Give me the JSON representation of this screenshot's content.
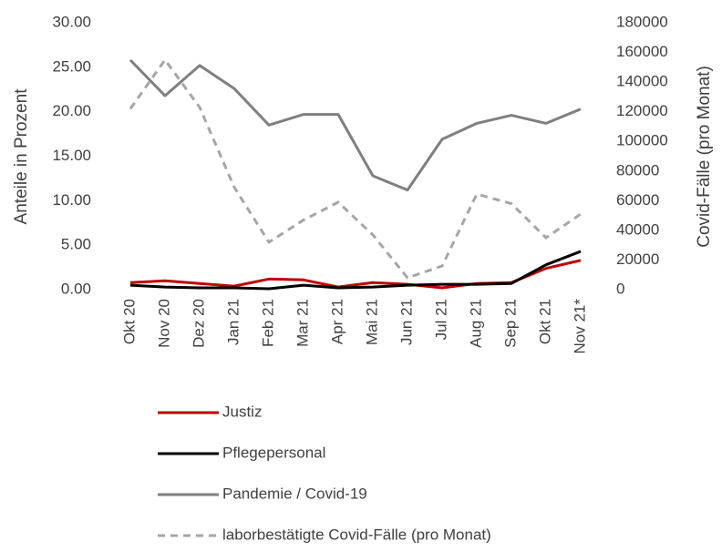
{
  "chart_data": {
    "type": "line",
    "y_label": "Anteile in Prozent",
    "y2_label": "Covid-Fälle (pro Monat)",
    "categories": [
      "Okt 20",
      "Nov 20",
      "Dez 20",
      "Jan 21",
      "Feb 21",
      "Mar 21",
      "Apr 21",
      "Mai 21",
      "Jun 21",
      "Jul 21",
      "Aug 21",
      "Sep 21",
      "Okt 21",
      "Nov 21*"
    ],
    "series": [
      {
        "name": "Justiz",
        "color": "#c00000",
        "values": [
          0.8,
          1.0,
          0.7,
          0.4,
          1.2,
          1.1,
          0.3,
          0.8,
          0.6,
          0.2,
          0.7,
          0.8,
          2.4,
          3.3
        ]
      },
      {
        "name": "Pflegepersonal",
        "color": "#000000",
        "values": [
          0.5,
          0.3,
          0.2,
          0.2,
          0.1,
          0.5,
          0.2,
          0.3,
          0.5,
          0.6,
          0.6,
          0.7,
          2.8,
          4.3
        ]
      },
      {
        "name": "Pandemie / Covid-19",
        "color": "#7f7f7f",
        "values": [
          25.8,
          21.8,
          25.2,
          22.6,
          18.5,
          19.7,
          19.7,
          12.8,
          11.2,
          16.9,
          18.7,
          19.6,
          18.7,
          20.3
        ]
      },
      {
        "name": "laborbestätigte Covid-Fälle (pro Monat)",
        "color": "#a6a6a6",
        "dashed": true,
        "axis": "y2",
        "values": [
          122000,
          155000,
          123000,
          69000,
          32000,
          47000,
          59000,
          37000,
          8000,
          16000,
          64500,
          58000,
          35000,
          51000
        ]
      }
    ],
    "ylim": [
      0,
      30
    ],
    "yticks": [
      {
        "value": 0,
        "label": "0.00"
      },
      {
        "value": 5,
        "label": "5.00"
      },
      {
        "value": 10,
        "label": "10.00"
      },
      {
        "value": 15,
        "label": "15.00"
      },
      {
        "value": 20,
        "label": "20.00"
      },
      {
        "value": 25,
        "label": "25.00"
      },
      {
        "value": 30,
        "label": "30.00"
      }
    ],
    "y2lim": [
      0,
      180000
    ],
    "y2ticks": [
      0,
      20000,
      40000,
      60000,
      80000,
      100000,
      120000,
      140000,
      160000,
      180000
    ],
    "grid": false,
    "legend": "bottom"
  }
}
